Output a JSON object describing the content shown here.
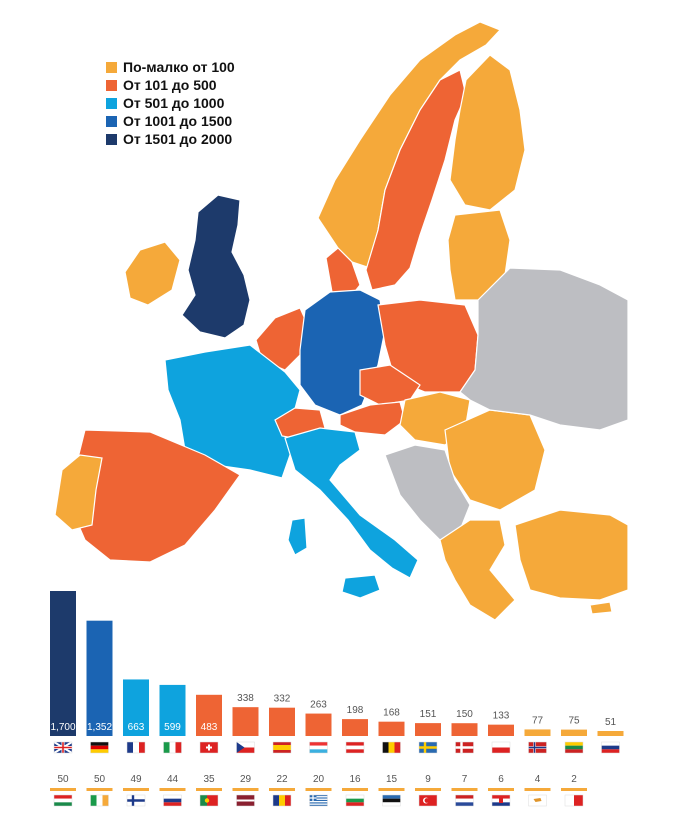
{
  "legend": [
    {
      "label": "По-малко от 100",
      "color": "#F5A93A"
    },
    {
      "label": "От 101 до 500",
      "color": "#EE6434"
    },
    {
      "label": "От 501 до 1000",
      "color": "#0EA3DE"
    },
    {
      "label": "От 1001 до 1500",
      "color": "#1B64B3"
    },
    {
      "label": "От 1501 до 2000",
      "color": "#1D3A6B"
    }
  ],
  "colors": {
    "tier1": "#F5A93A",
    "tier2": "#EE6434",
    "tier3": "#0EA3DE",
    "tier4": "#1B64B3",
    "tier5": "#1D3A6B",
    "no_data": "#BDBEC2"
  },
  "chart_data": {
    "type": "bar",
    "categories": [
      "UK",
      "DE",
      "FR",
      "IT",
      "CH",
      "CZ",
      "ES",
      "LU",
      "AT",
      "BE",
      "SE",
      "DK",
      "PL",
      "NO",
      "LT",
      "SI",
      "HU",
      "IE",
      "FI",
      "SK",
      "PT",
      "LV",
      "RO",
      "GR",
      "BG",
      "EE",
      "TR",
      "NL",
      "HR",
      "CY",
      "MT"
    ],
    "values": [
      1700,
      1352,
      663,
      599,
      483,
      338,
      332,
      263,
      198,
      168,
      151,
      150,
      133,
      77,
      75,
      51,
      50,
      50,
      49,
      44,
      35,
      29,
      22,
      20,
      16,
      15,
      9,
      7,
      6,
      4,
      2
    ],
    "value_labels": [
      "1,700",
      "1,352",
      "663",
      "599",
      "483",
      "338",
      "332",
      "263",
      "198",
      "168",
      "151",
      "150",
      "133",
      "77",
      "75",
      "51",
      "50",
      "50",
      "49",
      "44",
      "35",
      "29",
      "22",
      "20",
      "16",
      "15",
      "9",
      "7",
      "6",
      "4",
      "2"
    ],
    "flag_icons": [
      "uk-flag-icon",
      "germany-flag-icon",
      "france-flag-icon",
      "italy-flag-icon",
      "switzerland-flag-icon",
      "czechia-flag-icon",
      "spain-flag-icon",
      "luxembourg-flag-icon",
      "austria-flag-icon",
      "belgium-flag-icon",
      "sweden-flag-icon",
      "denmark-flag-icon",
      "poland-flag-icon",
      "norway-flag-icon",
      "lithuania-flag-icon",
      "slovenia-flag-icon",
      "hungary-flag-icon",
      "ireland-flag-icon",
      "finland-flag-icon",
      "slovakia-flag-icon",
      "portugal-flag-icon",
      "latvia-flag-icon",
      "romania-flag-icon",
      "greece-flag-icon",
      "bulgaria-flag-icon",
      "estonia-flag-icon",
      "turkey-flag-icon",
      "netherlands-flag-icon",
      "croatia-flag-icon",
      "cyprus-flag-icon",
      "malta-flag-icon"
    ],
    "legend_position": "top-left",
    "grid": false
  }
}
